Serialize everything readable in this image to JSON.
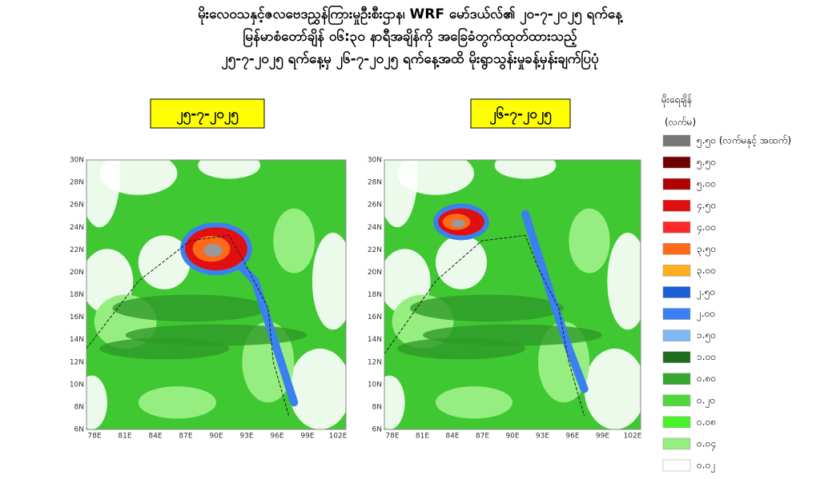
{
  "header": {
    "lines": [
      "မိုးလေဝသနှင့်ဇလဗေဒညွှန်ကြားမှုဦးစီးဌာန၊ WRF မော်ဒယ်လ်၏ ၂၀-၇-၂၀၂၅ ရက်နေ့",
      "မြန်မာစံတော်ချိန် ၀၆:၃၀ နာရီအချိန်ကို အခြေခံတွက်ထုတ်ထားသည့်",
      "၂၅-၇-၂၀၂၅ ရက်နေ့မှ ၂၆-၇-၂၀၂၅ ရက်နေ့အထိ မိုးရွာသွန်းမှုခန့်မှန်းချက်ပြပုံ"
    ]
  },
  "maps": [
    {
      "date": "၂၅-၇-၂၀၂၅",
      "lat_labels": [
        "30N",
        "28N",
        "26N",
        "24N",
        "22N",
        "20N",
        "18N",
        "16N",
        "14N",
        "12N",
        "10N",
        "8N",
        "6N"
      ],
      "lon_labels": [
        "78E",
        "81E",
        "84E",
        "87E",
        "90E",
        "93E",
        "96E",
        "99E",
        "102E"
      ]
    },
    {
      "date": "၂၆-၇-၂၀၂၅",
      "lat_labels": [
        "30N",
        "28N",
        "26N",
        "24N",
        "22N",
        "20N",
        "18N",
        "16N",
        "14N",
        "12N",
        "10N",
        "8N",
        "6N"
      ],
      "lon_labels": [
        "78E",
        "81E",
        "84E",
        "87E",
        "90E",
        "93E",
        "96E",
        "99E",
        "102E"
      ]
    }
  ],
  "legend": {
    "title": "မိုးရေချိန်",
    "unit": "(လက်မ)",
    "items": [
      {
        "label": "၅.၅၀ (လက်မနှင့် အထက်)",
        "color": "#777777"
      },
      {
        "label": "၅.၅၀",
        "color": "#6e0000"
      },
      {
        "label": "၅.၀၀",
        "color": "#b00000"
      },
      {
        "label": "၄.၅၀",
        "color": "#e01010"
      },
      {
        "label": "၄.၀၀",
        "color": "#ff2a2a"
      },
      {
        "label": "၃.၅၀",
        "color": "#ff6a1a"
      },
      {
        "label": "၃.၀၀",
        "color": "#ffb020"
      },
      {
        "label": "၂.၅၀",
        "color": "#1a5fd6"
      },
      {
        "label": "၂.၀၀",
        "color": "#3a80f0"
      },
      {
        "label": "၁.၅၀",
        "color": "#80b8f5"
      },
      {
        "label": "၁.၀၀",
        "color": "#1f6e1f"
      },
      {
        "label": "၀.၈၀",
        "color": "#37a52e"
      },
      {
        "label": "၀.၂၀",
        "color": "#4fd83a"
      },
      {
        "label": "၀.၀၈",
        "color": "#49f22a"
      },
      {
        "label": "၀.၀၄",
        "color": "#96ee80"
      },
      {
        "label": "၀.၀၂",
        "color": "#ffffff"
      }
    ]
  }
}
